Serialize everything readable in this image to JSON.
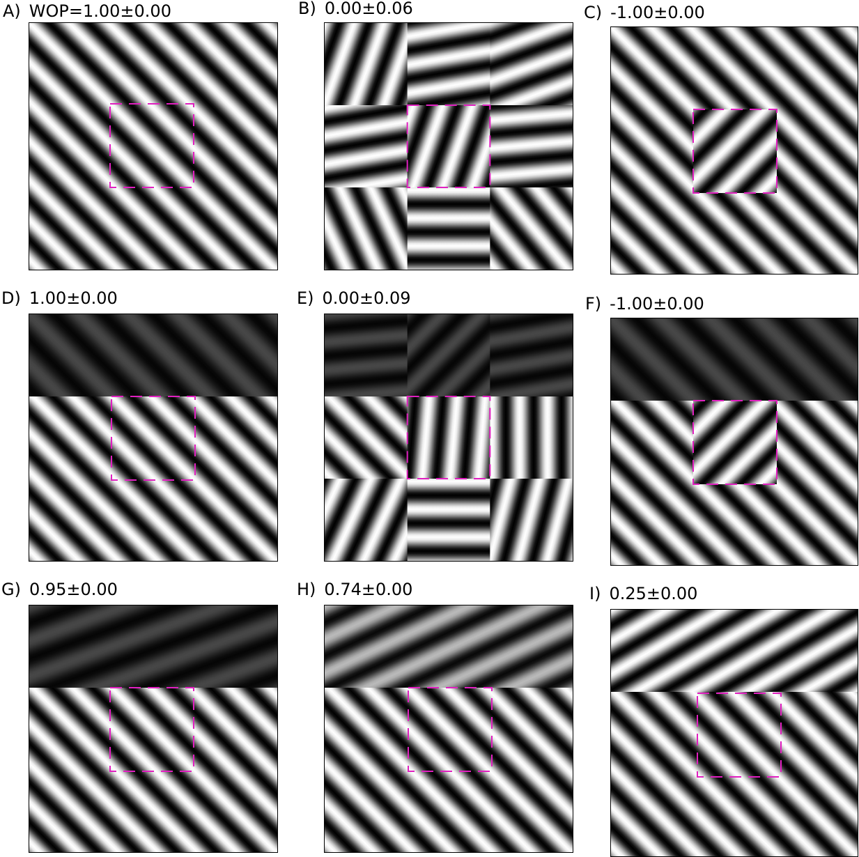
{
  "panels": [
    {
      "letter": "A)",
      "title": "WOP=1.00±0.00"
    },
    {
      "letter": "B)",
      "title": "0.00±0.06"
    },
    {
      "letter": "C)",
      "title": "-1.00±0.00"
    },
    {
      "letter": "D)",
      "title": "1.00±0.00"
    },
    {
      "letter": "E)",
      "title": "0.00±0.09"
    },
    {
      "letter": "F)",
      "title": "-1.00±0.00"
    },
    {
      "letter": "G)",
      "title": "0.95±0.00"
    },
    {
      "letter": "H)",
      "title": "0.74±0.00"
    },
    {
      "letter": "I)",
      "title": "0.25±0.00"
    }
  ],
  "colors": {
    "roi_outline": "#e020c0",
    "frame": "#000000"
  }
}
